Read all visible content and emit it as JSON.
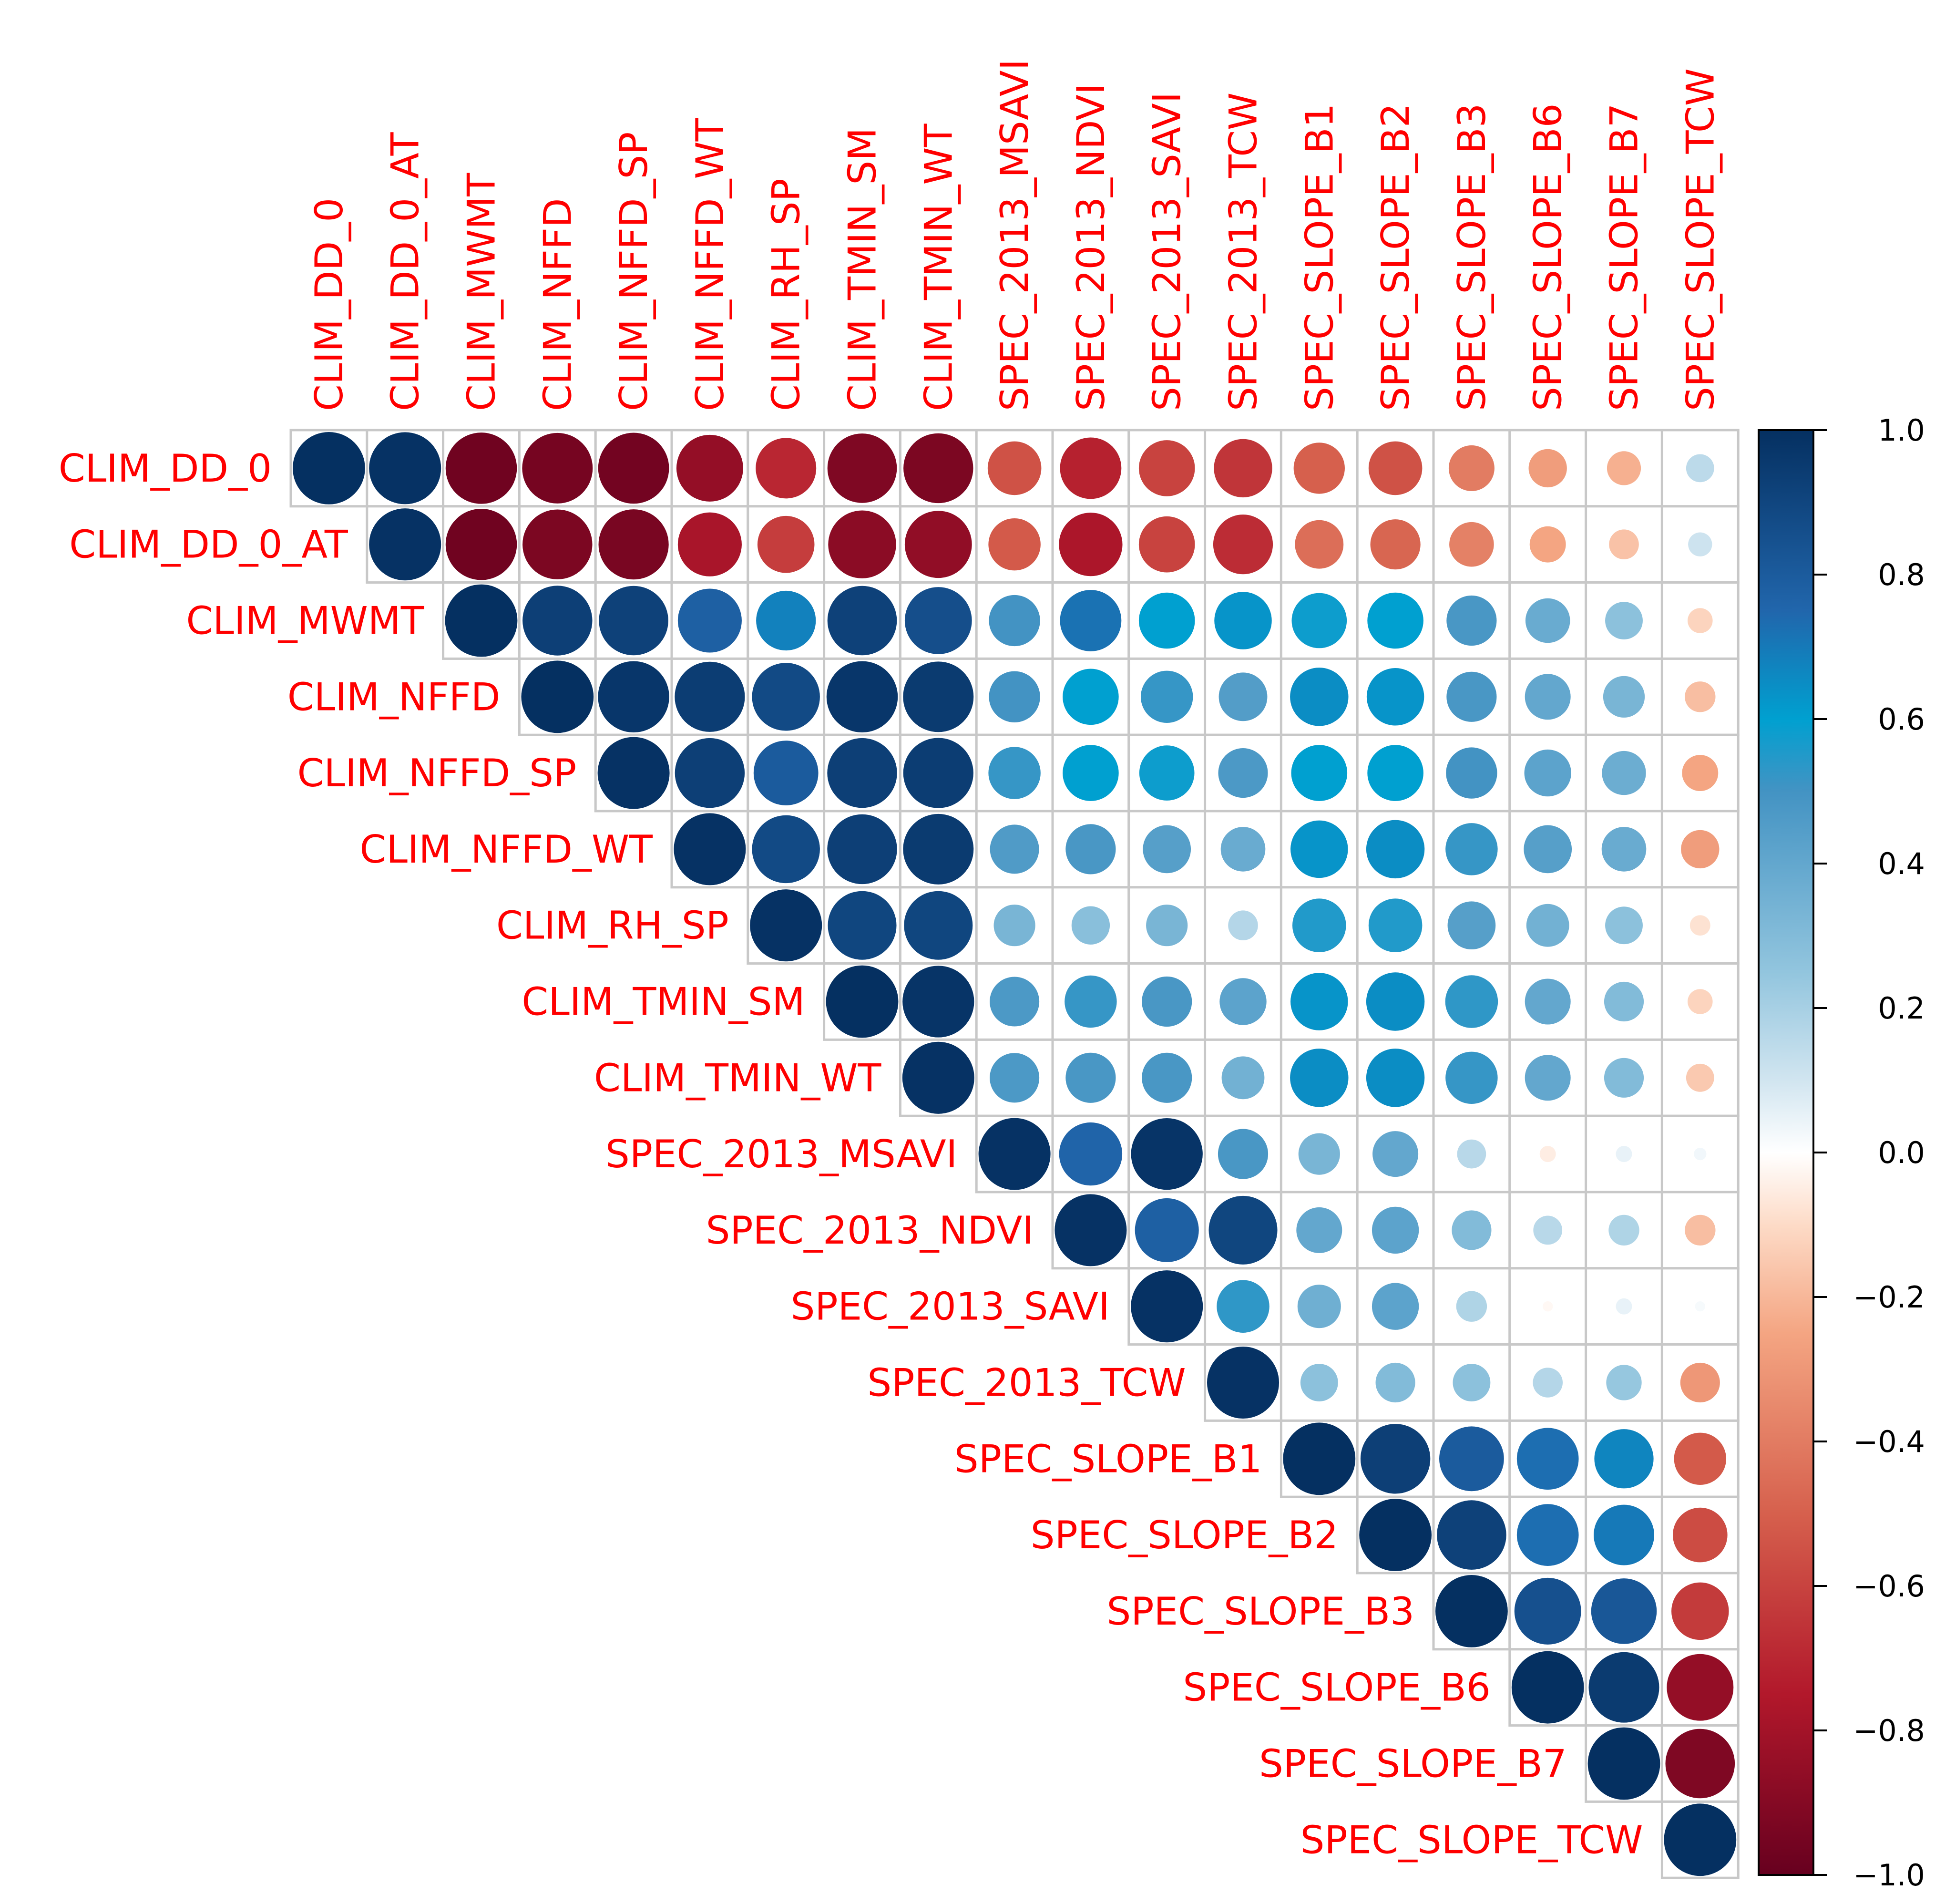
{
  "chart_data": {
    "type": "heatmap",
    "style": "upper-triangle circle correlation matrix",
    "labels": [
      "CLIM_DD_0",
      "CLIM_DD_0_AT",
      "CLIM_MWMT",
      "CLIM_NFFD",
      "CLIM_NFFD_SP",
      "CLIM_NFFD_WT",
      "CLIM_RH_SP",
      "CLIM_TMIN_SM",
      "CLIM_TMIN_WT",
      "SPEC_2013_MSAVI",
      "SPEC_2013_NDVI",
      "SPEC_2013_SAVI",
      "SPEC_2013_TCW",
      "SPEC_SLOPE_B1",
      "SPEC_SLOPE_B2",
      "SPEC_SLOPE_B3",
      "SPEC_SLOPE_B6",
      "SPEC_SLOPE_B7",
      "SPEC_SLOPE_TCW"
    ],
    "matrix_upper": [
      [
        1.0,
        0.99,
        -0.97,
        -0.95,
        -0.96,
        -0.85,
        -0.7,
        -0.92,
        -0.93,
        -0.55,
        -0.72,
        -0.6,
        -0.65,
        -0.5,
        -0.55,
        -0.4,
        -0.28,
        -0.22,
        0.15
      ],
      [
        0.99,
        -0.97,
        -0.93,
        -0.94,
        -0.78,
        -0.62,
        -0.88,
        -0.86,
        -0.52,
        -0.77,
        -0.6,
        -0.68,
        -0.45,
        -0.48,
        -0.38,
        -0.25,
        -0.17,
        0.11
      ],
      [
        1.0,
        0.93,
        0.92,
        0.78,
        0.68,
        0.92,
        0.86,
        0.5,
        0.72,
        0.6,
        0.63,
        0.58,
        0.6,
        0.48,
        0.38,
        0.27,
        -0.12
      ],
      [
        1.0,
        0.97,
        0.94,
        0.88,
        0.97,
        0.95,
        0.5,
        0.6,
        0.52,
        0.45,
        0.65,
        0.63,
        0.48,
        0.4,
        0.33,
        -0.18
      ],
      [
        0.99,
        0.93,
        0.8,
        0.93,
        0.94,
        0.52,
        0.6,
        0.58,
        0.47,
        0.6,
        0.6,
        0.5,
        0.42,
        0.37,
        -0.25
      ],
      [
        0.99,
        0.88,
        0.93,
        0.95,
        0.46,
        0.48,
        0.44,
        0.38,
        0.63,
        0.65,
        0.52,
        0.44,
        0.38,
        -0.28
      ],
      [
        0.99,
        0.9,
        0.9,
        0.33,
        0.28,
        0.33,
        0.17,
        0.55,
        0.55,
        0.44,
        0.35,
        0.27,
        -0.08
      ],
      [
        1.0,
        0.98,
        0.47,
        0.52,
        0.48,
        0.42,
        0.63,
        0.65,
        0.53,
        0.4,
        0.3,
        -0.12
      ],
      [
        0.99,
        0.47,
        0.48,
        0.48,
        0.35,
        0.65,
        0.65,
        0.52,
        0.4,
        0.3,
        -0.15
      ],
      [
        0.99,
        0.76,
        0.98,
        0.48,
        0.33,
        0.4,
        0.16,
        -0.05,
        0.05,
        0.03
      ],
      [
        0.99,
        0.78,
        0.9,
        0.4,
        0.42,
        0.3,
        0.16,
        0.18,
        -0.18
      ],
      [
        0.99,
        0.53,
        0.36,
        0.42,
        0.18,
        -0.02,
        0.05,
        0.02
      ],
      [
        0.99,
        0.27,
        0.3,
        0.27,
        0.17,
        0.24,
        -0.3
      ],
      [
        1.0,
        0.93,
        0.8,
        0.73,
        0.67,
        -0.52
      ],
      [
        1.0,
        0.92,
        0.73,
        0.7,
        -0.57
      ],
      [
        1.0,
        0.85,
        0.82,
        -0.63
      ],
      [
        1.0,
        0.95,
        -0.85
      ],
      [
        1.0,
        -0.92
      ],
      [
        1.0
      ]
    ],
    "color_scale": {
      "min": -1.0,
      "max": 1.0,
      "stops": [
        {
          "value": -1.0,
          "color": "#67001F"
        },
        {
          "value": -0.75,
          "color": "#B2182B"
        },
        {
          "value": -0.5,
          "color": "#D6604D"
        },
        {
          "value": -0.25,
          "color": "#F4A582"
        },
        {
          "value": -0.1,
          "color": "#FDDBC7"
        },
        {
          "value": 0.0,
          "color": "#FFFFFF"
        },
        {
          "value": 0.1,
          "color": "#D1E5F0"
        },
        {
          "value": 0.25,
          "color": "#92C5DE"
        },
        {
          "value": 0.5,
          "color": "#4393C3"
        },
        {
          "value": 0.6,
          "color": "#00A0D0"
        },
        {
          "value": 0.75,
          "color": "#2166AC"
        },
        {
          "value": 1.0,
          "color": "#053061"
        }
      ],
      "tick_labels": [
        "1.0",
        "0.8",
        "0.6",
        "0.4",
        "0.2",
        "0.0",
        "−0.2",
        "−0.4",
        "−0.6",
        "−0.8",
        "−1.0"
      ],
      "tick_values": [
        1.0,
        0.8,
        0.6,
        0.4,
        0.2,
        0.0,
        -0.2,
        -0.4,
        -0.6,
        -0.8,
        -1.0
      ]
    },
    "label_color": "#FF0000",
    "grid_color": "#C8C8C8",
    "legend_position": "right"
  }
}
